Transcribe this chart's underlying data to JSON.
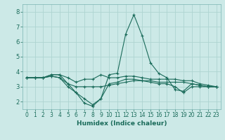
{
  "xlabel": "Humidex (Indice chaleur)",
  "ylabel": "",
  "bg_color": "#cce9e7",
  "grid_color": "#aed4d1",
  "line_color": "#1a6b5a",
  "spine_color": "#7ab5b2",
  "xlim": [
    -0.5,
    23.5
  ],
  "ylim": [
    1.5,
    8.5
  ],
  "xticks": [
    0,
    1,
    2,
    3,
    4,
    5,
    6,
    7,
    8,
    9,
    10,
    11,
    12,
    13,
    14,
    15,
    16,
    17,
    18,
    19,
    20,
    21,
    22,
    23
  ],
  "yticks": [
    2,
    3,
    4,
    5,
    6,
    7,
    8
  ],
  "series": [
    [
      3.6,
      3.6,
      3.6,
      3.8,
      3.8,
      3.6,
      3.3,
      3.5,
      3.5,
      3.8,
      3.6,
      3.6,
      3.7,
      3.7,
      3.6,
      3.5,
      3.5,
      3.5,
      3.5,
      3.4,
      3.4,
      3.2,
      3.1,
      3.0
    ],
    [
      3.6,
      3.6,
      3.6,
      3.8,
      3.8,
      3.2,
      2.6,
      2.2,
      1.8,
      2.2,
      3.8,
      3.9,
      6.5,
      7.8,
      6.4,
      4.6,
      3.9,
      3.6,
      2.8,
      2.7,
      3.2,
      3.1,
      3.0,
      3.0
    ],
    [
      3.6,
      3.6,
      3.6,
      3.7,
      3.6,
      3.0,
      2.6,
      1.9,
      1.7,
      2.2,
      3.2,
      3.3,
      3.5,
      3.5,
      3.4,
      3.3,
      3.2,
      3.2,
      3.0,
      2.6,
      3.0,
      3.0,
      3.0,
      3.0
    ],
    [
      3.6,
      3.6,
      3.6,
      3.7,
      3.6,
      3.2,
      3.0,
      3.0,
      3.0,
      3.0,
      3.1,
      3.2,
      3.3,
      3.4,
      3.4,
      3.4,
      3.3,
      3.3,
      3.3,
      3.3,
      3.2,
      3.1,
      3.0,
      3.0
    ]
  ],
  "xlabel_fontsize": 6.5,
  "tick_fontsize": 5.5,
  "ylabel_fontsize": 6,
  "linewidth": 0.8,
  "markersize": 3,
  "markeredgewidth": 0.8
}
